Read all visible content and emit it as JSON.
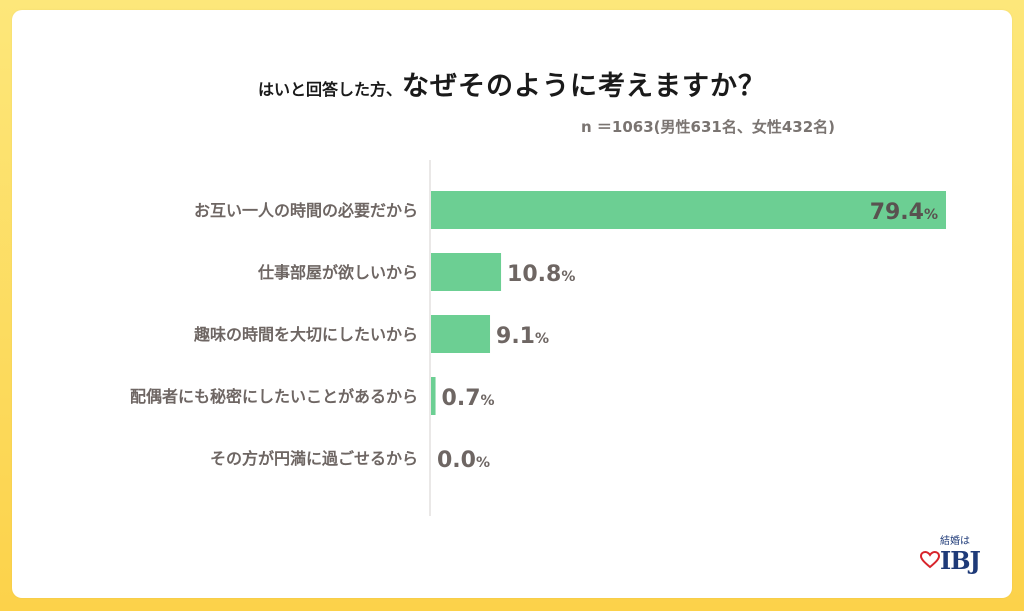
{
  "header": {
    "title_prefix": "はいと回答した方、",
    "title_main": "なぜそのように考えますか？",
    "sample_note": "n ＝1063(男性631名、女性432名)"
  },
  "chart_data": {
    "type": "bar",
    "orientation": "horizontal",
    "categories": [
      "お互い一人の時間の必要だから",
      "仕事部屋が欲しいから",
      "趣味の時間を大切にしたいから",
      "配偶者にも秘密にしたいことがあるから",
      "その方が円満に過ごせるから"
    ],
    "values": [
      79.4,
      10.8,
      9.1,
      0.7,
      0.0
    ],
    "unit": "%",
    "xlim": [
      0,
      80
    ],
    "grid": false,
    "bar_color": "#6ccf93"
  },
  "logo": {
    "top_text": "結婚は",
    "brand_text": "IBJ",
    "heart_color": "#d8242b",
    "text_color": "#1e3a78"
  }
}
